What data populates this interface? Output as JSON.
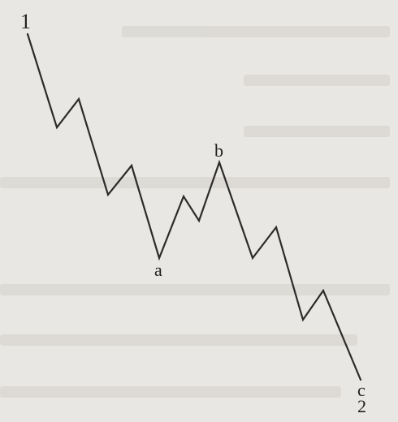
{
  "diagram": {
    "labels": {
      "start": "1",
      "a": "a",
      "b": "b",
      "c": "c",
      "end": "2"
    },
    "colors": {
      "line": "#2b2b2b",
      "background": "#e9e7e3",
      "bleed_through_text": "#d4d1cc"
    }
  }
}
